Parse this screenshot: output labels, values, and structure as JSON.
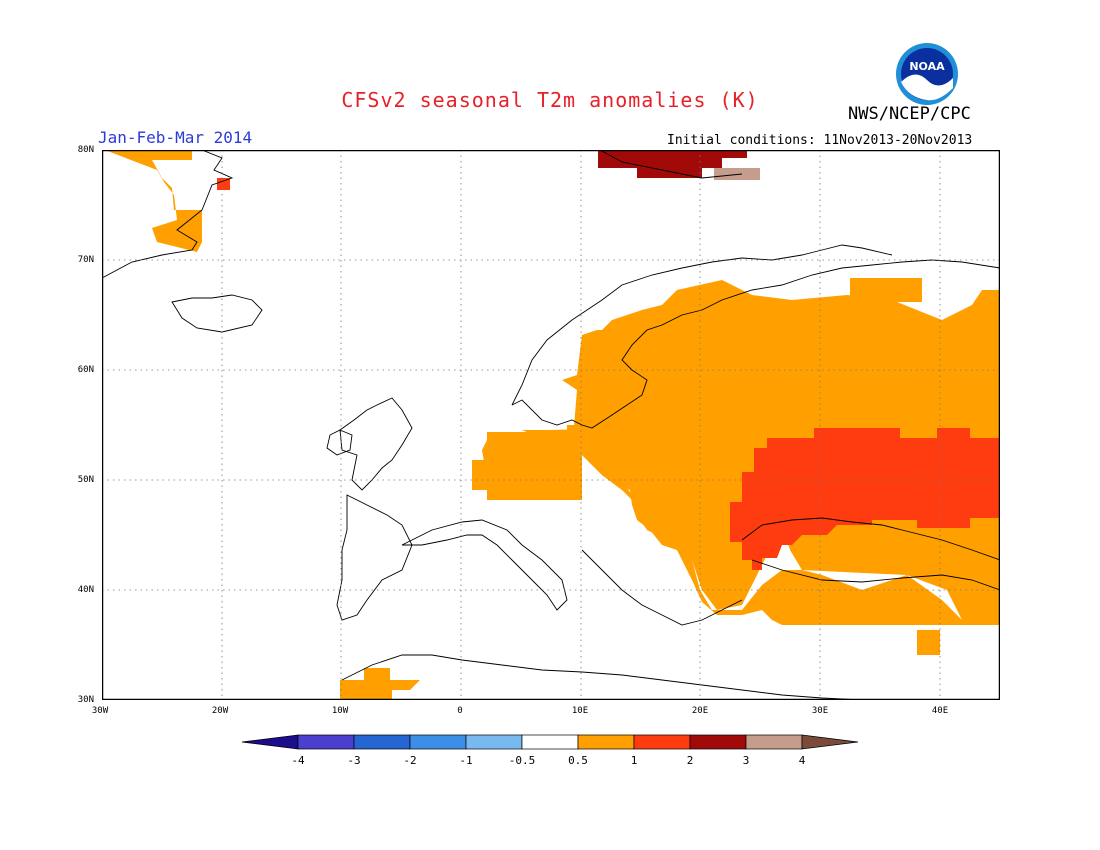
{
  "header": {
    "title": "CFSv2 seasonal T2m anomalies (K)",
    "agency": "NWS/NCEP/CPC",
    "season": "Jan-Feb-Mar 2014",
    "initial_conditions": "Initial conditions: 11Nov2013-20Nov2013"
  },
  "logo": {
    "text": "NOAA",
    "icon": "noaa-logo-icon"
  },
  "axes": {
    "lat_labels": [
      "80N",
      "70N",
      "60N",
      "50N",
      "40N",
      "30N"
    ],
    "lon_labels": [
      "30W",
      "20W",
      "10W",
      "0",
      "10E",
      "20E",
      "30E",
      "40E"
    ],
    "lat_range": [
      30,
      80
    ],
    "lon_range": [
      -30,
      45
    ]
  },
  "colorbar": {
    "tick_labels": [
      "-4",
      "-3",
      "-2",
      "-1",
      "-0.5",
      "0.5",
      "1",
      "2",
      "3",
      "4"
    ],
    "colors": [
      "#1c0d8c",
      "#4b3fd0",
      "#2566d2",
      "#3c8fe8",
      "#78b9f0",
      "#ffffff",
      "#ff9f00",
      "#ff3c0f",
      "#a20a0a",
      "#c69c8c",
      "#7a4a3a"
    ]
  },
  "anomaly_colors": {
    "0.5-1": "#ff9f00",
    "1-2": "#ff3c0f",
    "2-3": "#a20a0a",
    "3-4": "#c69c8c"
  }
}
